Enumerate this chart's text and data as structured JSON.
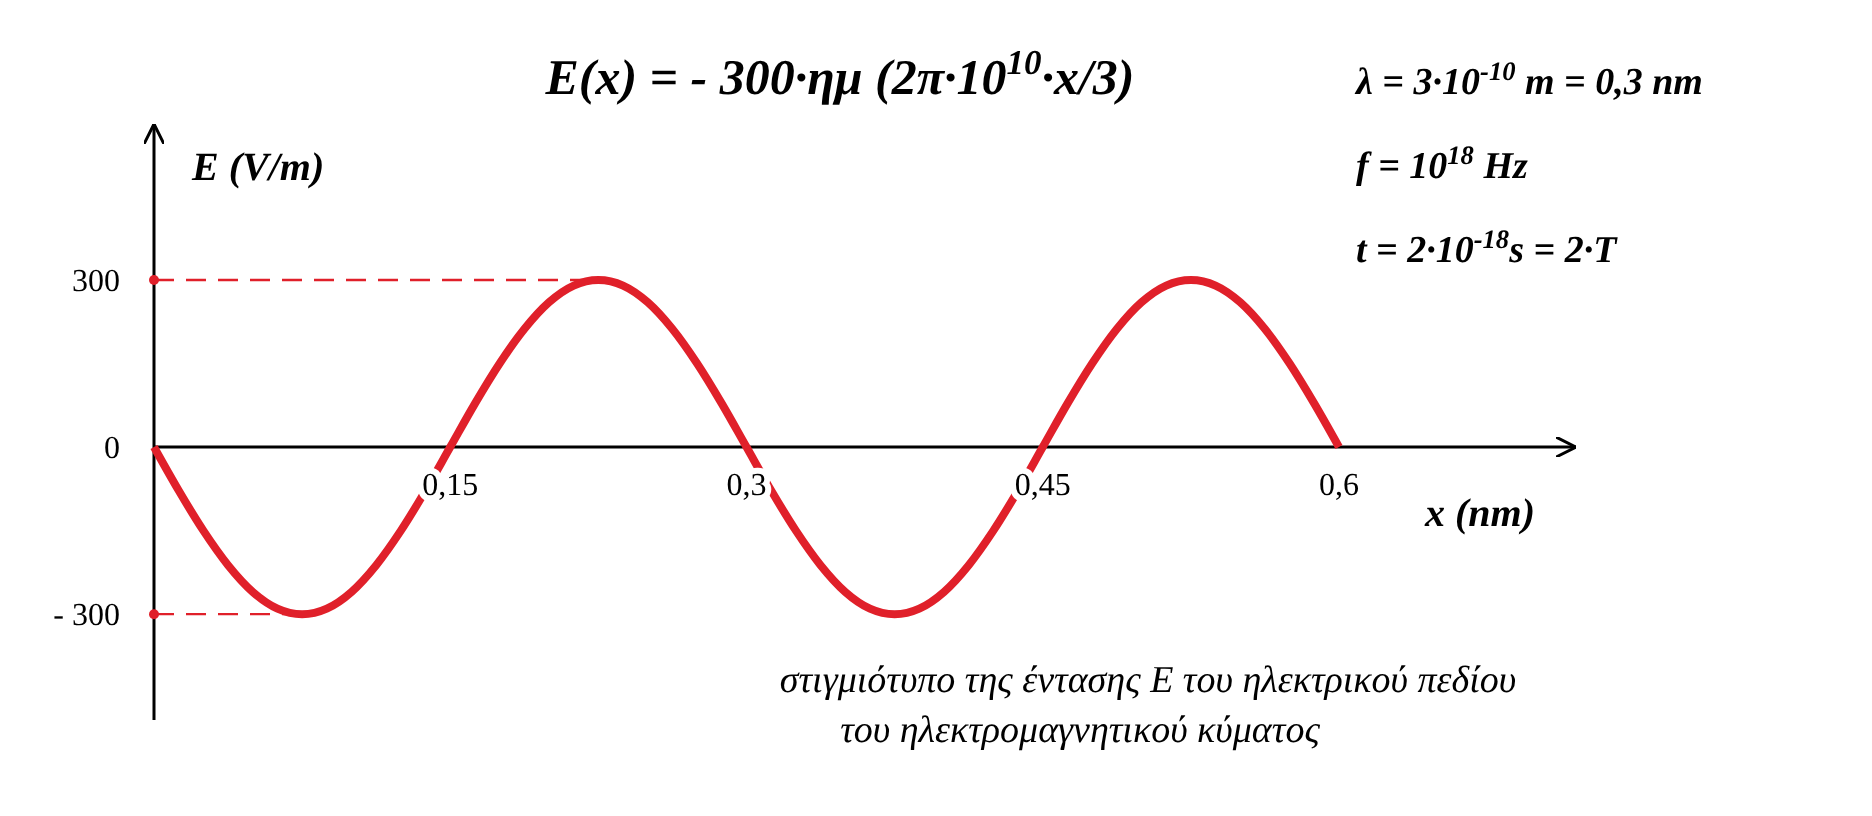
{
  "chart_data": {
    "type": "line",
    "title": "E(x) = - 300·ημ (2π·10$^{10}$·x/3)",
    "xlabel": "x (nm)",
    "ylabel": "E (V/m)",
    "x": [
      0,
      0.0125,
      0.025,
      0.0375,
      0.05,
      0.0625,
      0.075,
      0.0875,
      0.1,
      0.1125,
      0.125,
      0.1375,
      0.15,
      0.1625,
      0.175,
      0.1875,
      0.2,
      0.2125,
      0.225,
      0.2375,
      0.25,
      0.2625,
      0.275,
      0.2875,
      0.3,
      0.3125,
      0.325,
      0.3375,
      0.35,
      0.3625,
      0.375,
      0.3875,
      0.4,
      0.4125,
      0.425,
      0.4375,
      0.45,
      0.4625,
      0.475,
      0.4875,
      0.5,
      0.5125,
      0.525,
      0.5375,
      0.55,
      0.5625,
      0.575,
      0.5875,
      0.6
    ],
    "series": [
      {
        "color": "#e0202a",
        "values": [
          0,
          -78,
          -150,
          -212,
          -260,
          -290,
          -300,
          -290,
          -260,
          -212,
          -150,
          -78,
          0,
          78,
          150,
          212,
          260,
          290,
          300,
          290,
          260,
          212,
          150,
          78,
          0,
          -78,
          -150,
          -212,
          -260,
          -290,
          -300,
          -290,
          -260,
          -212,
          -150,
          -78,
          0,
          78,
          150,
          212,
          260,
          290,
          300,
          290,
          260,
          212,
          150,
          78,
          0
        ]
      }
    ],
    "xlim": [
      0,
      0.72
    ],
    "xticks": [
      {
        "value": 0.15,
        "label": "0,15"
      },
      {
        "value": 0.3,
        "label": "0,3"
      },
      {
        "value": 0.45,
        "label": "0,45"
      },
      {
        "value": 0.6,
        "label": "0,6"
      }
    ],
    "ylim": [
      -490,
      580
    ],
    "yticks": [
      {
        "value": -300,
        "label": "- 300"
      },
      0,
      300
    ],
    "ref_lines": [
      {
        "axis": "y",
        "value": 300,
        "color": "#e0202a",
        "line_style": "dashed"
      },
      {
        "axis": "y",
        "value": -300,
        "color": "#e0202a",
        "line_style": "dashed"
      }
    ],
    "annotations": [
      "λ = 3·10$^{-10}$ m = 0,3 nm",
      "f  = 10$^{18}$ Hz",
      "t = 2·10$^{-18}$s  = 2·T",
      "στιγμιότυπο της έντασης  E  του ηλεκτρικού πεδίου",
      "του ηλεκτρομαγνητικού κύματος"
    ],
    "grid": false,
    "marker": "none",
    "line_style": "solid"
  }
}
